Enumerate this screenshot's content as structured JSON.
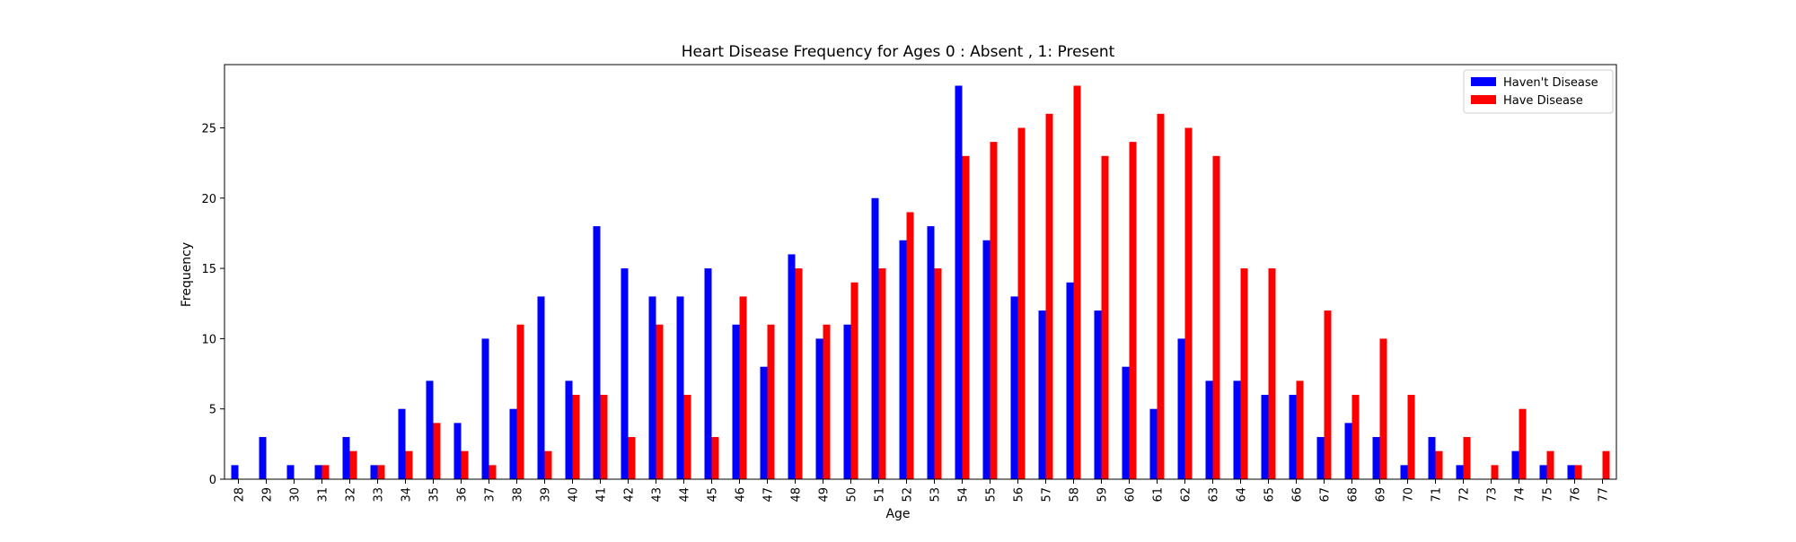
{
  "chart_data": {
    "type": "bar",
    "title": "Heart Disease Frequency for Ages 0 : Absent , 1: Present",
    "xlabel": "Age",
    "ylabel": "Frequency",
    "ylim": [
      0,
      29.5
    ],
    "yticks": [
      0,
      5,
      10,
      15,
      20,
      25
    ],
    "grid": false,
    "legend_position": "top-right",
    "categories": [
      "28",
      "29",
      "30",
      "31",
      "32",
      "33",
      "34",
      "35",
      "36",
      "37",
      "38",
      "39",
      "40",
      "41",
      "42",
      "43",
      "44",
      "45",
      "46",
      "47",
      "48",
      "49",
      "50",
      "51",
      "52",
      "53",
      "54",
      "55",
      "56",
      "57",
      "58",
      "59",
      "60",
      "61",
      "62",
      "63",
      "64",
      "65",
      "66",
      "67",
      "68",
      "69",
      "70",
      "71",
      "72",
      "73",
      "74",
      "75",
      "76",
      "77"
    ],
    "series": [
      {
        "name": "Haven't Disease",
        "color": "#0000ff",
        "values": [
          1,
          3,
          1,
          1,
          3,
          1,
          5,
          7,
          4,
          10,
          5,
          13,
          7,
          18,
          15,
          13,
          13,
          15,
          11,
          8,
          16,
          10,
          11,
          20,
          17,
          18,
          28,
          17,
          13,
          12,
          14,
          12,
          8,
          5,
          10,
          7,
          7,
          6,
          6,
          3,
          4,
          3,
          1,
          3,
          1,
          0,
          2,
          1,
          1,
          0
        ]
      },
      {
        "name": "Have Disease",
        "color": "#ff0000",
        "values": [
          0,
          0,
          0,
          1,
          2,
          1,
          2,
          4,
          2,
          1,
          11,
          2,
          6,
          6,
          3,
          11,
          6,
          3,
          13,
          11,
          15,
          11,
          14,
          15,
          19,
          15,
          23,
          24,
          25,
          26,
          28,
          23,
          24,
          26,
          25,
          23,
          15,
          15,
          7,
          12,
          6,
          10,
          6,
          2,
          3,
          1,
          5,
          2,
          1,
          2
        ]
      }
    ]
  }
}
